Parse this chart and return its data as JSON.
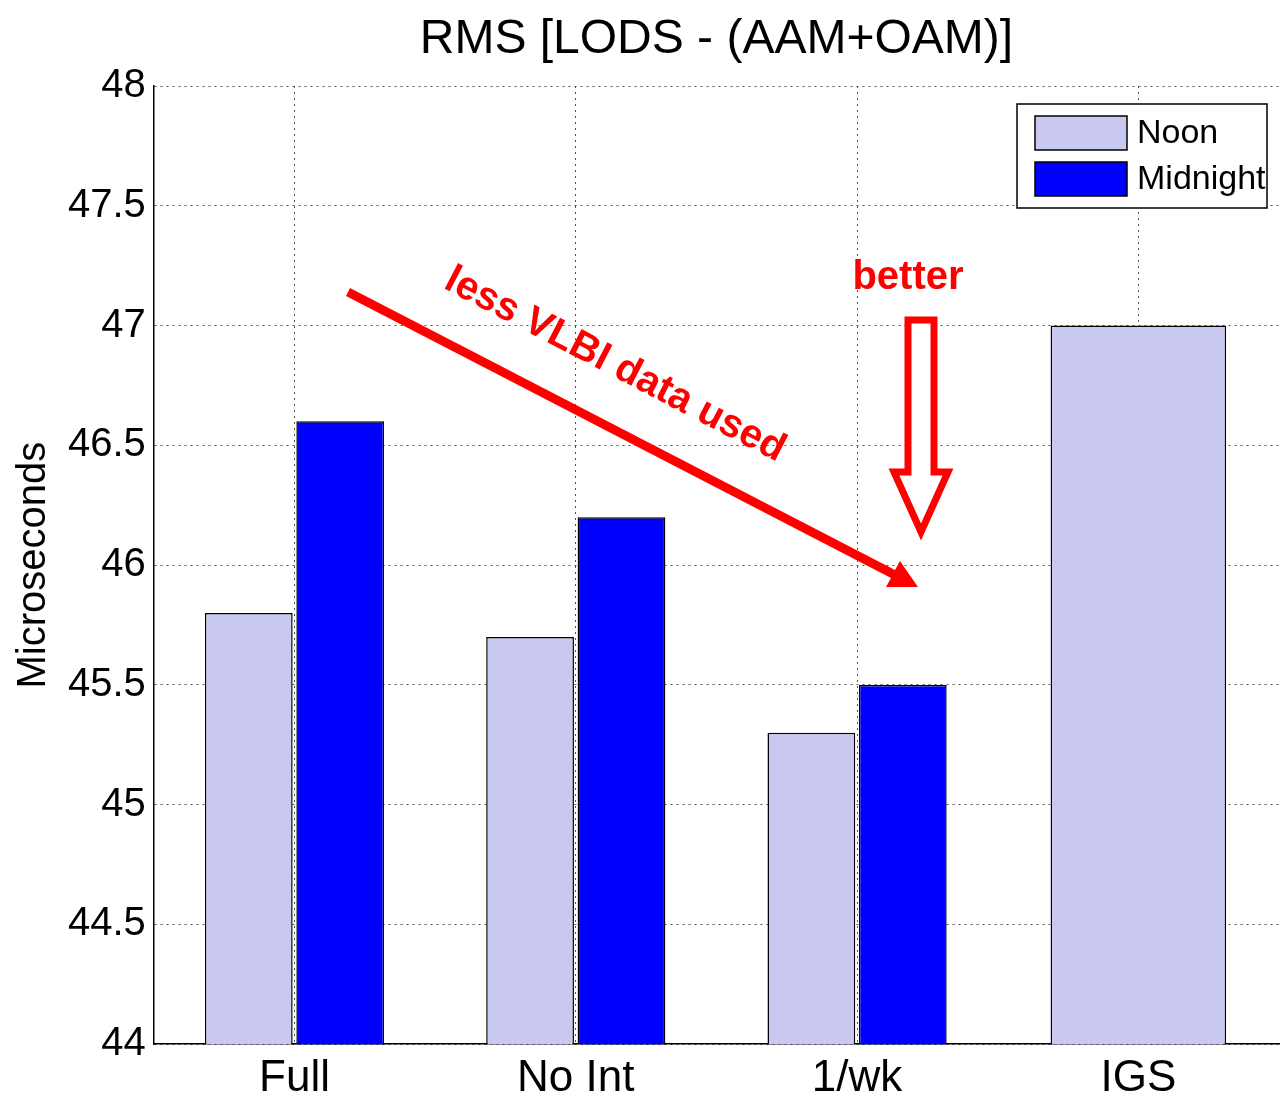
{
  "chart_data": {
    "type": "bar",
    "title": "RMS [LODS - (AAM+OAM)]",
    "ylabel": "Microseconds",
    "categories": [
      "Full",
      "No Int",
      "1/wk",
      "IGS"
    ],
    "series": [
      {
        "name": "Noon",
        "color": "#c8c8f0",
        "values": [
          45.8,
          45.7,
          45.3,
          47.0
        ]
      },
      {
        "name": "Midnight",
        "color": "#0000ff",
        "values": [
          46.6,
          46.2,
          45.5,
          null
        ]
      }
    ],
    "ylim": [
      44,
      48
    ],
    "yticks": [
      44,
      44.5,
      45,
      45.5,
      46,
      46.5,
      47,
      47.5,
      48
    ],
    "grid": true,
    "legend": "top right",
    "annotations": [
      "less VLBI data used",
      "better"
    ]
  }
}
